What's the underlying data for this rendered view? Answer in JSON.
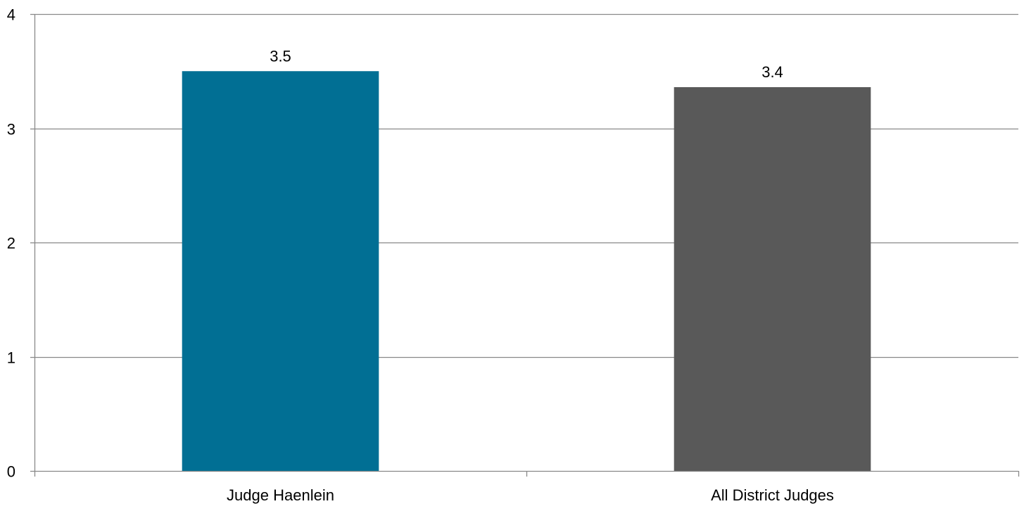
{
  "chart_data": {
    "type": "bar",
    "title": "",
    "xlabel": "",
    "ylabel": "",
    "categories": [
      "Judge Haenlein",
      "All District Judges"
    ],
    "values": [
      3.5,
      3.36
    ],
    "value_labels": [
      "3.5",
      "3.4"
    ],
    "colors": [
      "#016f94",
      "#595959"
    ],
    "ylim": [
      0,
      4
    ],
    "y_ticks": [
      0,
      1,
      2,
      3,
      4
    ],
    "y_tick_labels": [
      "0",
      "1",
      "2",
      "3",
      "4"
    ],
    "grid": true,
    "grid_color": "#898989",
    "legend": "none"
  }
}
